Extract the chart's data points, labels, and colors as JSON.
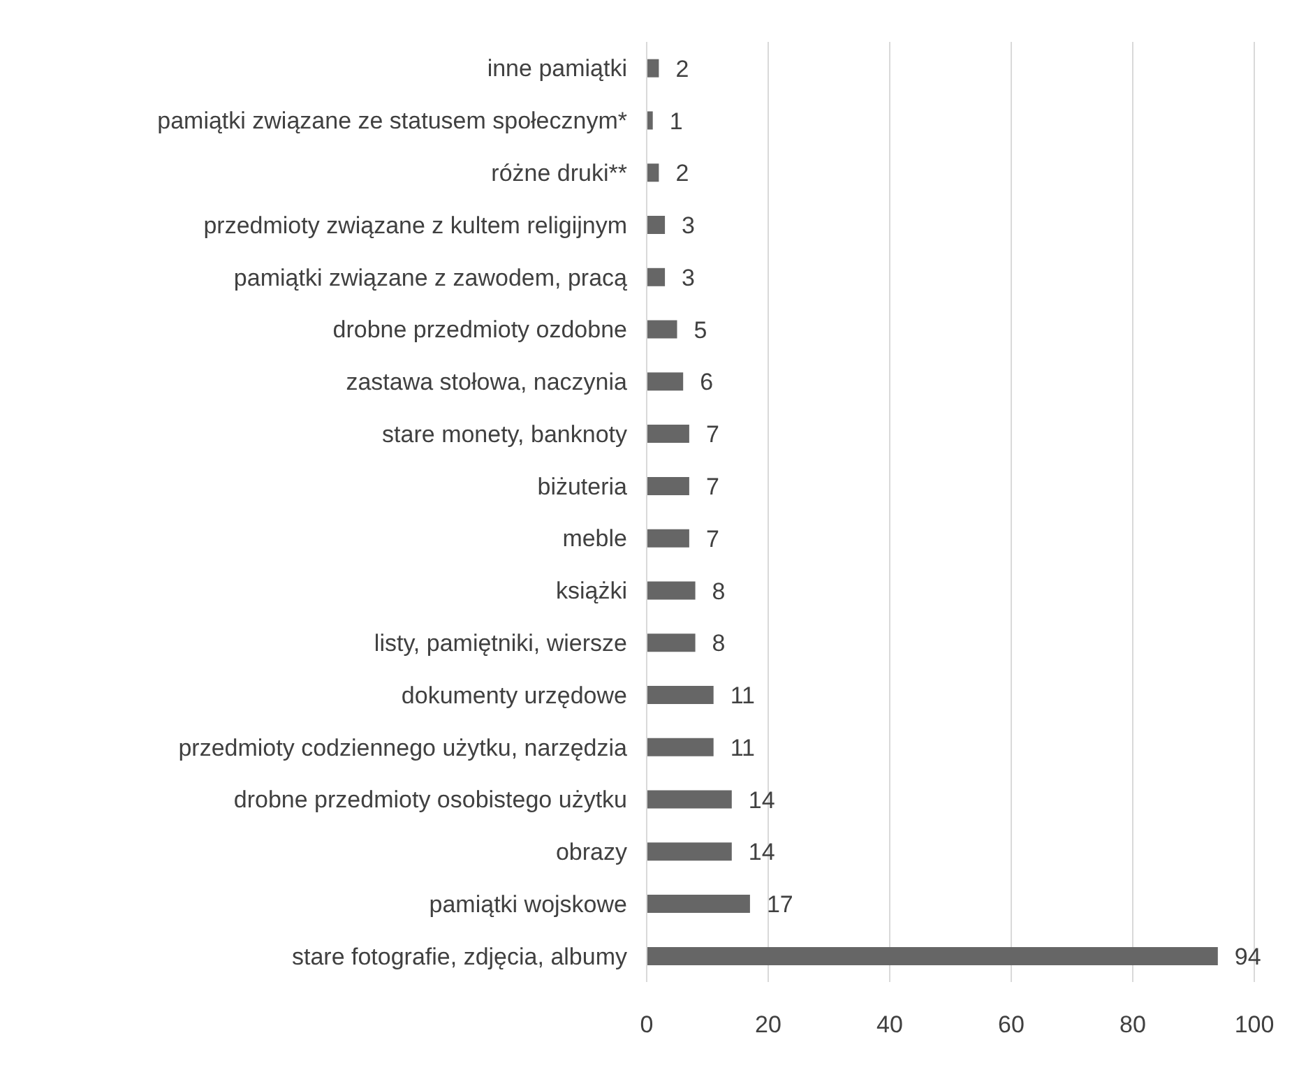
{
  "chart_data": {
    "type": "bar",
    "orientation": "horizontal",
    "categories": [
      "inne pamiątki",
      "pamiątki związane ze statusem społecznym*",
      "różne druki**",
      "przedmioty związane z kultem religijnym",
      "pamiątki związane z zawodem, pracą",
      "drobne  przedmioty ozdobne",
      "zastawa stołowa, naczynia",
      "stare monety, banknoty",
      "biżuteria",
      "meble",
      "książki",
      "listy, pamiętniki, wiersze",
      "dokumenty urzędowe",
      "przedmioty codziennego użytku, narzędzia",
      "drobne przedmioty osobistego użytku",
      "obrazy",
      "pamiątki wojskowe",
      "stare fotografie, zdjęcia, albumy"
    ],
    "values": [
      2,
      1,
      2,
      3,
      3,
      5,
      6,
      7,
      7,
      7,
      8,
      8,
      11,
      11,
      14,
      14,
      17,
      94
    ],
    "color": "#666666",
    "xlim": [
      0,
      100
    ],
    "xticks": [
      0,
      20,
      40,
      60,
      80,
      100
    ],
    "grid": "x",
    "data_labels": true
  }
}
